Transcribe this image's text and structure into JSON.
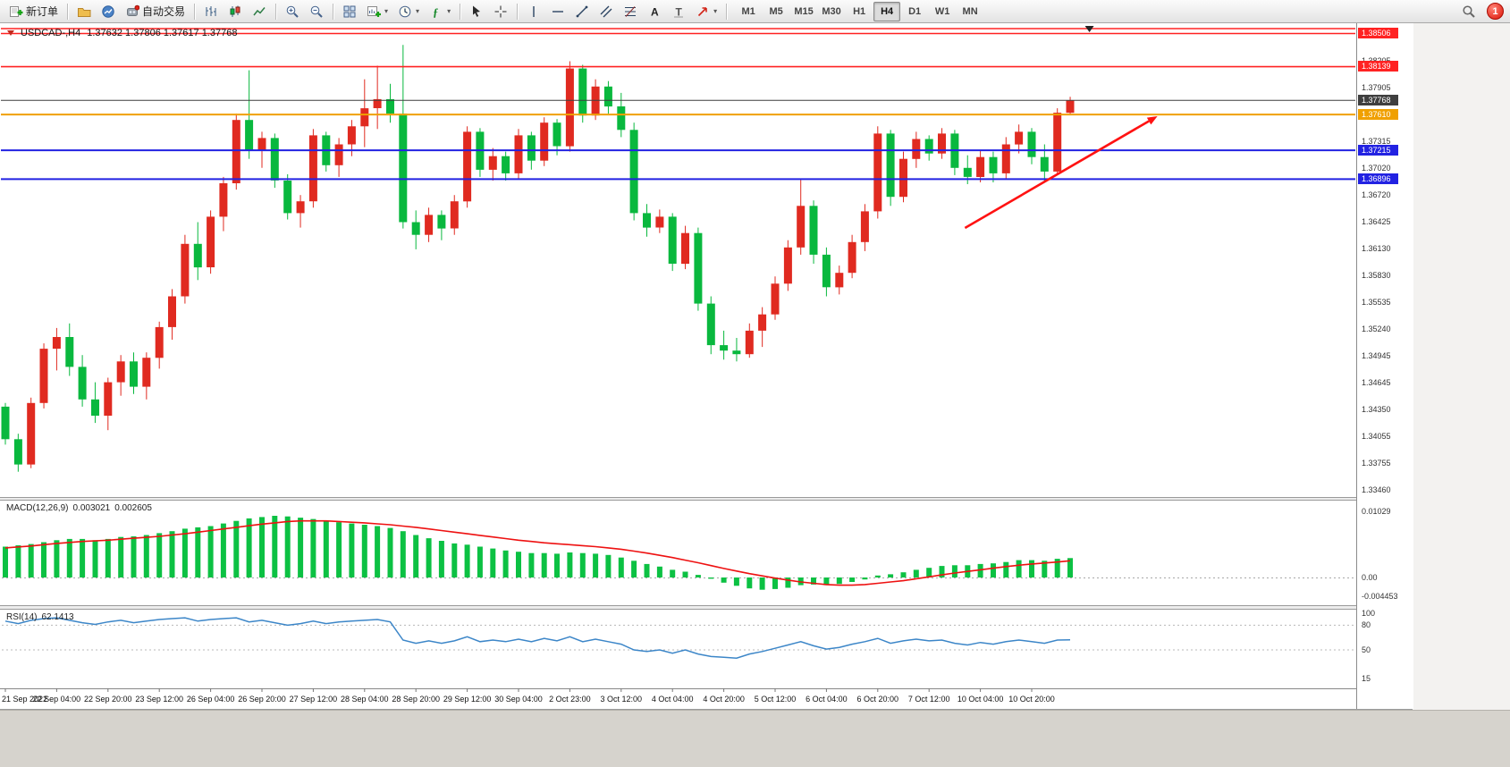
{
  "toolbar": {
    "new_order_label": "新订单",
    "autotrading_label": "自动交易",
    "timeframes": [
      "M1",
      "M5",
      "M15",
      "M30",
      "H1",
      "H4",
      "D1",
      "W1",
      "MN"
    ],
    "active_timeframe": "H4",
    "notification_badge": "1"
  },
  "header": {
    "symbol": "USDCAD-,H4",
    "ohlc": "1.37632 1.37806 1.37617 1.37768"
  },
  "chart_data": [
    {
      "type": "candlestick",
      "title": "USDCAD-,H4",
      "timeframe": "H4",
      "bull_color": "#e02a20",
      "bear_color": "#09b83e",
      "ylim": [
        1.334,
        1.386
      ],
      "y_ticks": [
        1.38205,
        1.37905,
        1.37315,
        1.3702,
        1.3672,
        1.36425,
        1.3613,
        1.3583,
        1.35535,
        1.3524,
        1.34945,
        1.34645,
        1.3435,
        1.34055,
        1.33755,
        1.3346
      ],
      "x_labels": [
        "21 Sep 2022",
        "22 Sep 04:00",
        "22 Sep 20:00",
        "23 Sep 12:00",
        "26 Sep 04:00",
        "26 Sep 20:00",
        "27 Sep 12:00",
        "28 Sep 04:00",
        "28 Sep 20:00",
        "29 Sep 12:00",
        "30 Sep 04:00",
        "2 Oct 23:00",
        "3 Oct 12:00",
        "4 Oct 04:00",
        "4 Oct 20:00",
        "5 Oct 12:00",
        "6 Oct 04:00",
        "6 Oct 20:00",
        "7 Oct 12:00",
        "10 Oct 04:00",
        "10 Oct 20:00"
      ],
      "x_label_step": 4,
      "candles_ohlc": [
        [
          1.3438,
          1.3442,
          1.3396,
          1.3402
        ],
        [
          1.3402,
          1.3408,
          1.3366,
          1.3374
        ],
        [
          1.3374,
          1.3448,
          1.337,
          1.3442
        ],
        [
          1.3442,
          1.3508,
          1.3436,
          1.3502
        ],
        [
          1.3502,
          1.3525,
          1.3478,
          1.3515
        ],
        [
          1.3515,
          1.353,
          1.3472,
          1.3482
        ],
        [
          1.3482,
          1.3495,
          1.3438,
          1.3446
        ],
        [
          1.3446,
          1.3465,
          1.342,
          1.3428
        ],
        [
          1.3428,
          1.347,
          1.3412,
          1.3465
        ],
        [
          1.3465,
          1.3495,
          1.345,
          1.3488
        ],
        [
          1.3488,
          1.3498,
          1.3452,
          1.346
        ],
        [
          1.346,
          1.3498,
          1.3446,
          1.3492
        ],
        [
          1.3492,
          1.3532,
          1.348,
          1.3526
        ],
        [
          1.3526,
          1.3568,
          1.3512,
          1.356
        ],
        [
          1.356,
          1.3628,
          1.3552,
          1.3618
        ],
        [
          1.3618,
          1.3642,
          1.3578,
          1.3592
        ],
        [
          1.3592,
          1.3655,
          1.3585,
          1.3648
        ],
        [
          1.3648,
          1.3692,
          1.3632,
          1.3685
        ],
        [
          1.3685,
          1.3762,
          1.3678,
          1.3755
        ],
        [
          1.3755,
          1.381,
          1.3712,
          1.3722
        ],
        [
          1.3722,
          1.3742,
          1.3702,
          1.3735
        ],
        [
          1.3735,
          1.374,
          1.368,
          1.3688
        ],
        [
          1.3688,
          1.3695,
          1.3645,
          1.3652
        ],
        [
          1.3652,
          1.3672,
          1.3636,
          1.3665
        ],
        [
          1.3665,
          1.3745,
          1.3658,
          1.3738
        ],
        [
          1.3738,
          1.3742,
          1.3698,
          1.3705
        ],
        [
          1.3705,
          1.3735,
          1.3692,
          1.3728
        ],
        [
          1.3728,
          1.3755,
          1.3715,
          1.3748
        ],
        [
          1.3748,
          1.38,
          1.3725,
          1.3768
        ],
        [
          1.3768,
          1.3815,
          1.3745,
          1.3778
        ],
        [
          1.3778,
          1.3795,
          1.3752,
          1.3762
        ],
        [
          1.3762,
          1.3838,
          1.3635,
          1.3642
        ],
        [
          1.3642,
          1.3655,
          1.3612,
          1.3628
        ],
        [
          1.3628,
          1.3658,
          1.362,
          1.365
        ],
        [
          1.365,
          1.3655,
          1.3622,
          1.3635
        ],
        [
          1.3635,
          1.3672,
          1.3628,
          1.3665
        ],
        [
          1.3665,
          1.3748,
          1.3658,
          1.3742
        ],
        [
          1.3742,
          1.3746,
          1.3692,
          1.37
        ],
        [
          1.37,
          1.3724,
          1.3688,
          1.3715
        ],
        [
          1.3715,
          1.372,
          1.3688,
          1.3696
        ],
        [
          1.3696,
          1.3745,
          1.369,
          1.3738
        ],
        [
          1.3738,
          1.3742,
          1.37,
          1.371
        ],
        [
          1.371,
          1.3758,
          1.3704,
          1.3752
        ],
        [
          1.3752,
          1.3756,
          1.3716,
          1.3726
        ],
        [
          1.3726,
          1.382,
          1.372,
          1.3812
        ],
        [
          1.3812,
          1.3816,
          1.3752,
          1.376
        ],
        [
          1.376,
          1.38,
          1.3755,
          1.3792
        ],
        [
          1.3792,
          1.3798,
          1.3762,
          1.377
        ],
        [
          1.377,
          1.3785,
          1.3736,
          1.3744
        ],
        [
          1.3744,
          1.3752,
          1.3644,
          1.3652
        ],
        [
          1.3652,
          1.3662,
          1.3626,
          1.3636
        ],
        [
          1.3636,
          1.3656,
          1.363,
          1.3648
        ],
        [
          1.3648,
          1.3652,
          1.3588,
          1.3596
        ],
        [
          1.3596,
          1.3638,
          1.359,
          1.363
        ],
        [
          1.363,
          1.3636,
          1.3544,
          1.3552
        ],
        [
          1.3552,
          1.356,
          1.3496,
          1.3506
        ],
        [
          1.3506,
          1.3522,
          1.349,
          1.35
        ],
        [
          1.35,
          1.3514,
          1.3488,
          1.3496
        ],
        [
          1.3496,
          1.353,
          1.3492,
          1.3522
        ],
        [
          1.3522,
          1.3548,
          1.3504,
          1.354
        ],
        [
          1.354,
          1.3582,
          1.3534,
          1.3574
        ],
        [
          1.3574,
          1.3622,
          1.3566,
          1.3614
        ],
        [
          1.3614,
          1.369,
          1.3606,
          1.366
        ],
        [
          1.366,
          1.3666,
          1.3596,
          1.3606
        ],
        [
          1.3606,
          1.3614,
          1.356,
          1.357
        ],
        [
          1.357,
          1.3594,
          1.3562,
          1.3586
        ],
        [
          1.3586,
          1.3628,
          1.358,
          1.362
        ],
        [
          1.362,
          1.3662,
          1.361,
          1.3654
        ],
        [
          1.3654,
          1.3748,
          1.3646,
          1.374
        ],
        [
          1.374,
          1.3744,
          1.366,
          1.367
        ],
        [
          1.367,
          1.372,
          1.3664,
          1.3712
        ],
        [
          1.3712,
          1.3742,
          1.3702,
          1.3734
        ],
        [
          1.3734,
          1.3738,
          1.371,
          1.3718
        ],
        [
          1.3718,
          1.3746,
          1.3712,
          1.374
        ],
        [
          1.374,
          1.3744,
          1.3694,
          1.3702
        ],
        [
          1.3702,
          1.3716,
          1.3684,
          1.3692
        ],
        [
          1.3692,
          1.3722,
          1.3686,
          1.3714
        ],
        [
          1.3714,
          1.372,
          1.3686,
          1.3696
        ],
        [
          1.3696,
          1.3736,
          1.369,
          1.3728
        ],
        [
          1.3728,
          1.375,
          1.3718,
          1.3742
        ],
        [
          1.3742,
          1.3746,
          1.3706,
          1.3714
        ],
        [
          1.3714,
          1.3728,
          1.3686,
          1.3698
        ],
        [
          1.3698,
          1.3768,
          1.3694,
          1.3763
        ],
        [
          1.3763,
          1.37806,
          1.37617,
          1.37768
        ]
      ],
      "hlines": [
        {
          "price": 1.3856,
          "color": "#ff2222",
          "width": 1.6,
          "tag": false
        },
        {
          "price": 1.38506,
          "color": "#ff2222",
          "width": 1.6,
          "tag": true
        },
        {
          "price": 1.38139,
          "color": "#ff2222",
          "width": 1.6,
          "tag": true
        },
        {
          "price": 1.37768,
          "color": "#3f3f3f",
          "width": 1,
          "tag": true,
          "role": "current-price"
        },
        {
          "price": 1.3761,
          "color": "#f0a000",
          "width": 2,
          "tag": true
        },
        {
          "price": 1.37215,
          "color": "#2222e2",
          "width": 2,
          "tag": true
        },
        {
          "price": 1.36896,
          "color": "#2222e2",
          "width": 2,
          "tag": true
        }
      ],
      "arrow": {
        "from": {
          "bar": 74.8,
          "price": 1.36356
        },
        "to": {
          "bar": 89.8,
          "price": 1.37592
        },
        "color": "#ff1212"
      },
      "shift_marker_bar": 84.5
    },
    {
      "type": "bar+line",
      "name": "MACD",
      "params": "(12,26,9)",
      "value_main": "0.003021",
      "value_signal": "0.002605",
      "hist_color": "#0cc143",
      "signal_color": "#ee1111",
      "y_ticks": [
        "0.01029",
        "0.00",
        "-0.004453"
      ],
      "histogram": [
        0.0048,
        0.005,
        0.0052,
        0.0055,
        0.0058,
        0.006,
        0.006,
        0.0058,
        0.006,
        0.0063,
        0.0064,
        0.0066,
        0.0069,
        0.0072,
        0.0076,
        0.0078,
        0.008,
        0.0084,
        0.0088,
        0.0092,
        0.0094,
        0.0096,
        0.0095,
        0.0093,
        0.0091,
        0.0088,
        0.0086,
        0.0084,
        0.0082,
        0.008,
        0.0077,
        0.0072,
        0.0066,
        0.0061,
        0.0057,
        0.0053,
        0.0051,
        0.0048,
        0.0045,
        0.0042,
        0.004,
        0.0038,
        0.0038,
        0.0037,
        0.0039,
        0.0038,
        0.0037,
        0.0035,
        0.0031,
        0.0026,
        0.0021,
        0.0017,
        0.0012,
        0.0009,
        0.0004,
        -0.0002,
        -0.0008,
        -0.0013,
        -0.0017,
        -0.0019,
        -0.0018,
        -0.0016,
        -0.0012,
        -0.0011,
        -0.0012,
        -0.001,
        -0.0007,
        -0.0003,
        0.0003,
        0.0005,
        0.0008,
        0.0012,
        0.0015,
        0.0018,
        0.0019,
        0.0019,
        0.0021,
        0.0022,
        0.0024,
        0.0027,
        0.0027,
        0.0026,
        0.0029,
        0.003021
      ],
      "signal": [
        0.0046,
        0.00475,
        0.0049,
        0.0051,
        0.0053,
        0.00545,
        0.0056,
        0.0057,
        0.0058,
        0.00595,
        0.0061,
        0.00625,
        0.0064,
        0.0066,
        0.0068,
        0.00705,
        0.0073,
        0.00755,
        0.0078,
        0.00805,
        0.0083,
        0.0085,
        0.0087,
        0.0088,
        0.0088,
        0.0088,
        0.0087,
        0.0086,
        0.0085,
        0.00835,
        0.0082,
        0.008,
        0.0078,
        0.00755,
        0.0073,
        0.00705,
        0.0068,
        0.00655,
        0.0063,
        0.00605,
        0.0058,
        0.0056,
        0.0054,
        0.00525,
        0.0051,
        0.00495,
        0.0048,
        0.0046,
        0.0044,
        0.0041,
        0.0038,
        0.00345,
        0.0031,
        0.0027,
        0.0023,
        0.00185,
        0.0014,
        0.001,
        0.0006,
        0.00025,
        -0.0001,
        -0.0004,
        -0.0007,
        -0.0009,
        -0.0011,
        -0.0012,
        -0.0012,
        -0.0011,
        -0.0009,
        -0.0007,
        -0.0005,
        -0.0002,
        0.0001,
        0.0004,
        0.0007,
        0.00095,
        0.0012,
        0.00145,
        0.0017,
        0.0019,
        0.0021,
        0.00225,
        0.0024,
        0.002605
      ]
    },
    {
      "type": "line",
      "name": "RSI",
      "params": "(14)",
      "value": "62.1413",
      "line_color": "#3c86c8",
      "levels": [
        80,
        50
      ],
      "y_ticks": [
        "100",
        "80",
        "50",
        "15"
      ],
      "values": [
        85,
        82,
        86,
        88,
        89,
        86,
        83,
        81,
        84,
        86,
        83,
        85,
        87,
        88,
        89,
        85,
        87,
        88,
        89,
        84,
        86,
        83,
        80,
        82,
        85,
        82,
        84,
        85,
        86,
        87,
        84,
        62,
        58,
        61,
        58,
        61,
        66,
        60,
        62,
        60,
        63,
        60,
        64,
        61,
        66,
        60,
        63,
        60,
        57,
        50,
        48,
        50,
        46,
        50,
        45,
        42,
        41,
        40,
        45,
        48,
        52,
        56,
        60,
        55,
        51,
        53,
        57,
        60,
        64,
        58,
        61,
        63,
        61,
        62,
        58,
        56,
        59,
        57,
        60,
        62,
        60,
        58,
        62,
        62.1413
      ]
    }
  ]
}
